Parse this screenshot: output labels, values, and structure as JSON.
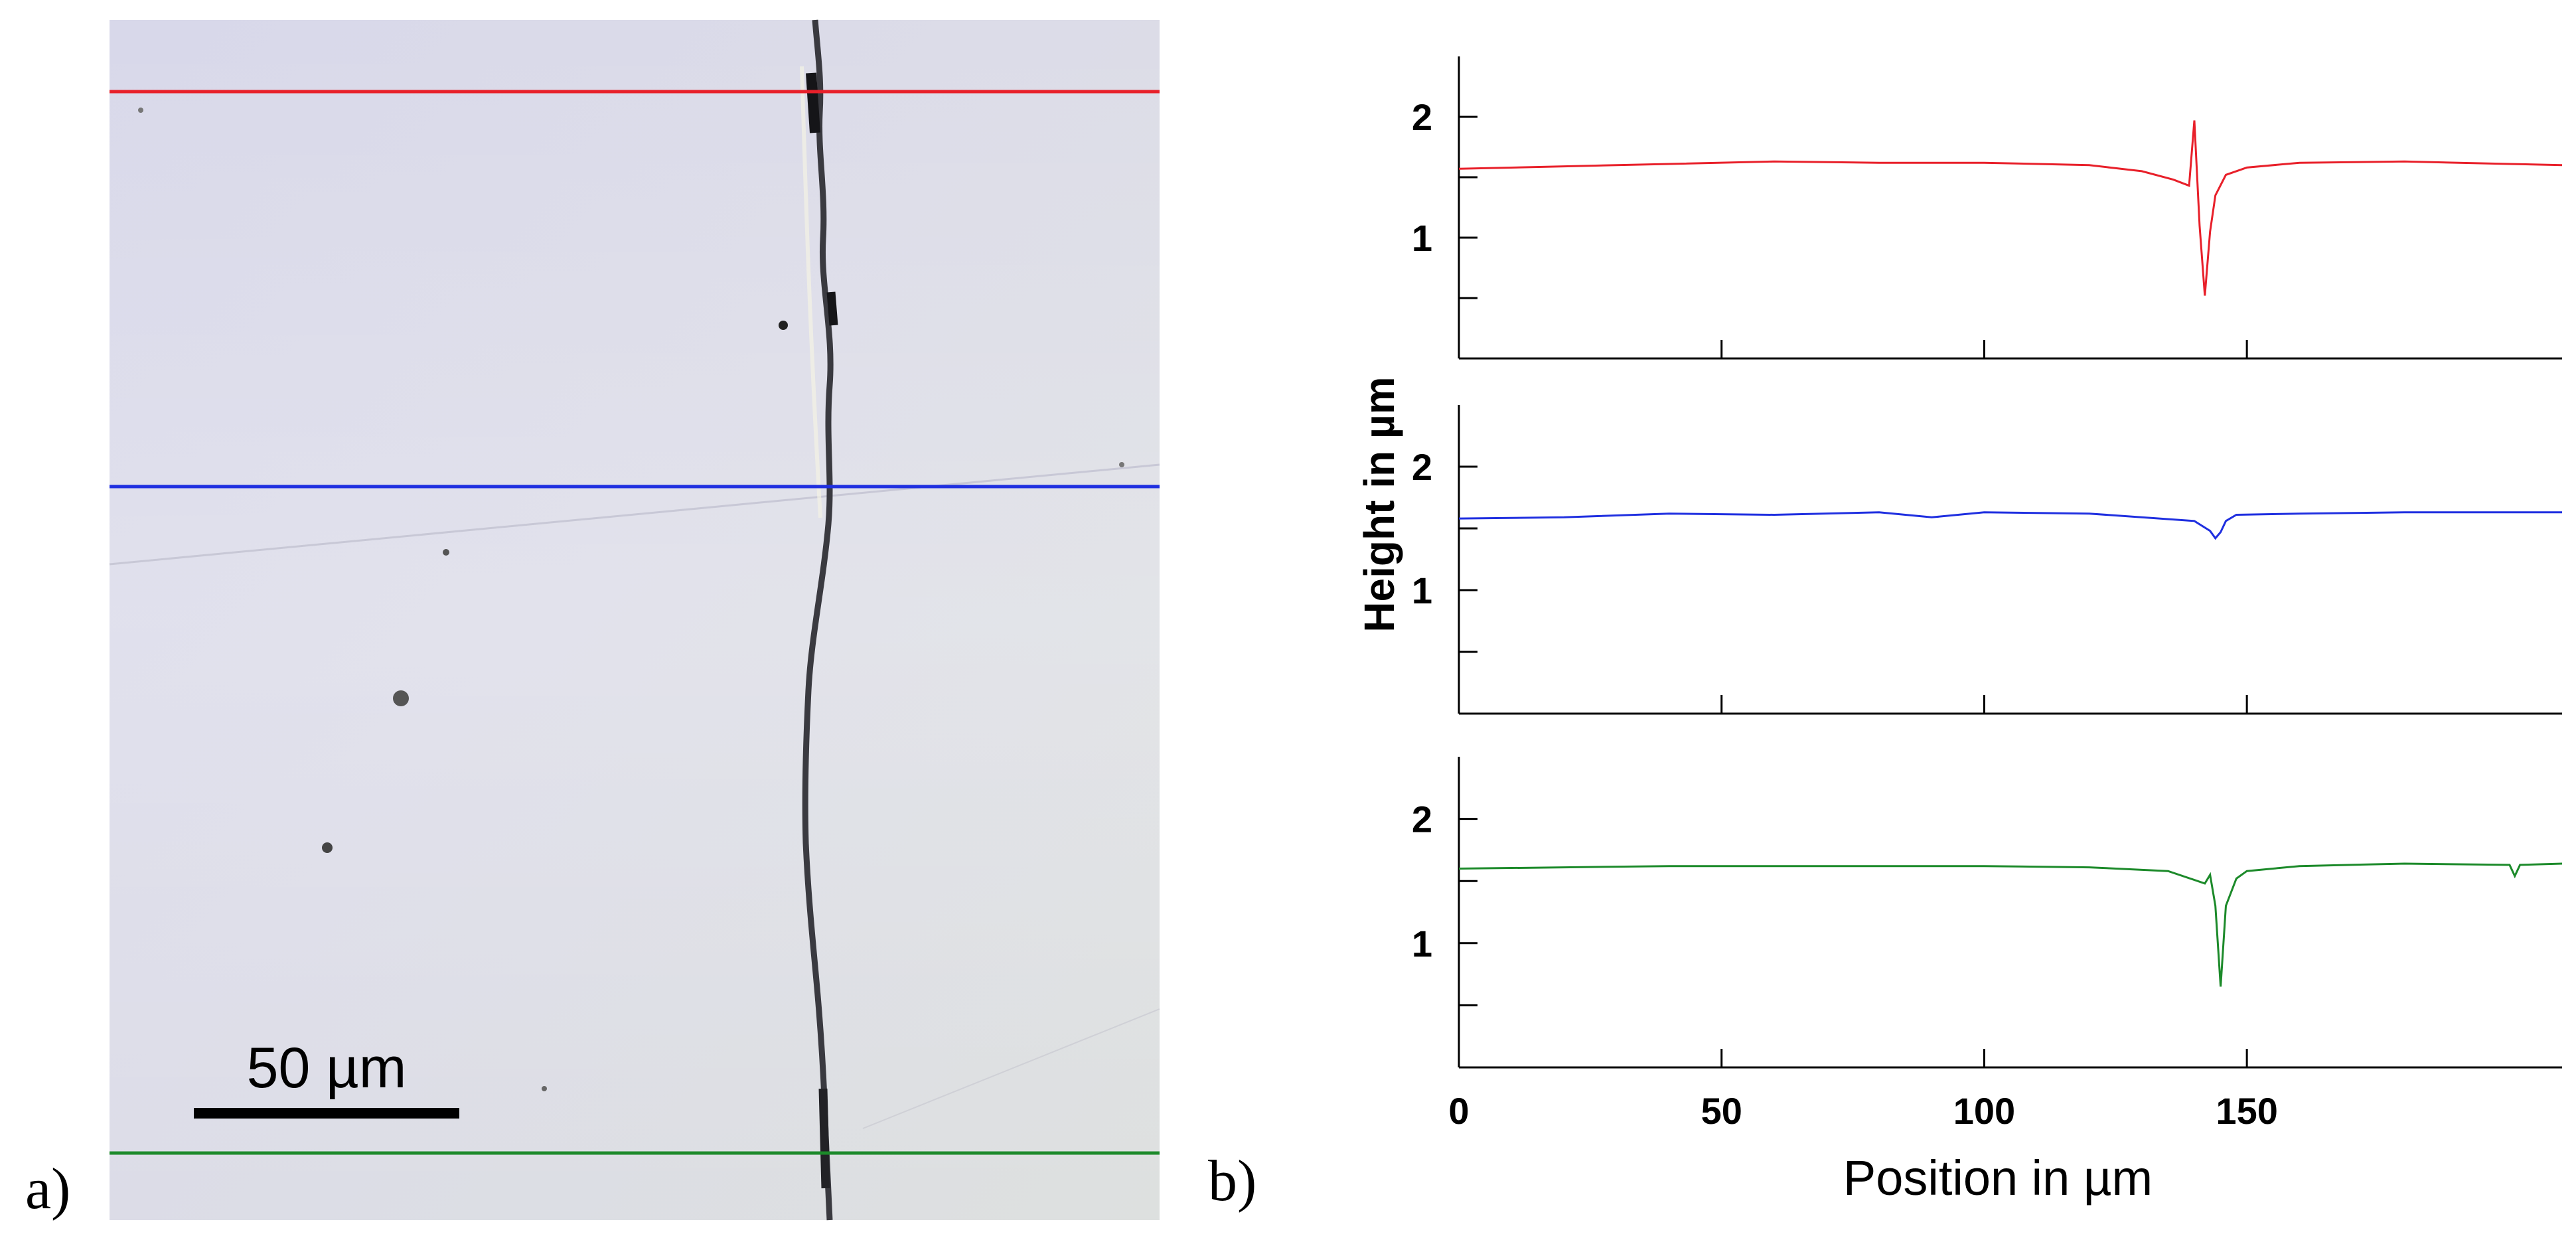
{
  "panel_a": {
    "label": "a)",
    "scale_bar_label": "50 µm",
    "line_colors": [
      "#e8202a",
      "#1f2fe0",
      "#1c8a2a"
    ]
  },
  "panel_b": {
    "label": "b)"
  },
  "chart_data": {
    "type": "line",
    "xlabel": "Position in µm",
    "ylabel": "Height in µm",
    "xlim": [
      0,
      210
    ],
    "ylim": [
      0,
      2.5
    ],
    "x_ticks": [
      0,
      50,
      100,
      150
    ],
    "y_ticks": [
      1,
      2
    ],
    "series": [
      {
        "color": "#e8202a",
        "x": [
          0,
          20,
          40,
          60,
          80,
          100,
          120,
          130,
          136,
          139,
          140,
          141,
          142,
          143,
          144,
          146,
          150,
          160,
          180,
          200,
          210
        ],
        "values": [
          1.57,
          1.59,
          1.61,
          1.63,
          1.62,
          1.62,
          1.6,
          1.55,
          1.48,
          1.43,
          1.97,
          1.1,
          0.52,
          1.05,
          1.35,
          1.52,
          1.58,
          1.62,
          1.63,
          1.61,
          1.6
        ]
      },
      {
        "color": "#1f2fe0",
        "x": [
          0,
          20,
          40,
          60,
          80,
          90,
          100,
          120,
          140,
          143,
          144,
          145,
          146,
          148,
          160,
          180,
          200,
          210
        ],
        "values": [
          1.58,
          1.59,
          1.62,
          1.61,
          1.63,
          1.59,
          1.63,
          1.62,
          1.56,
          1.48,
          1.42,
          1.47,
          1.56,
          1.61,
          1.62,
          1.63,
          1.63,
          1.63
        ]
      },
      {
        "color": "#1c8a2a",
        "x": [
          0,
          20,
          40,
          60,
          80,
          100,
          120,
          135,
          142,
          143,
          144,
          145,
          146,
          148,
          150,
          160,
          180,
          200,
          201,
          202,
          210
        ],
        "values": [
          1.6,
          1.61,
          1.62,
          1.62,
          1.62,
          1.62,
          1.61,
          1.58,
          1.48,
          1.55,
          1.3,
          0.65,
          1.3,
          1.52,
          1.58,
          1.62,
          1.64,
          1.63,
          1.54,
          1.63,
          1.64
        ]
      }
    ]
  }
}
